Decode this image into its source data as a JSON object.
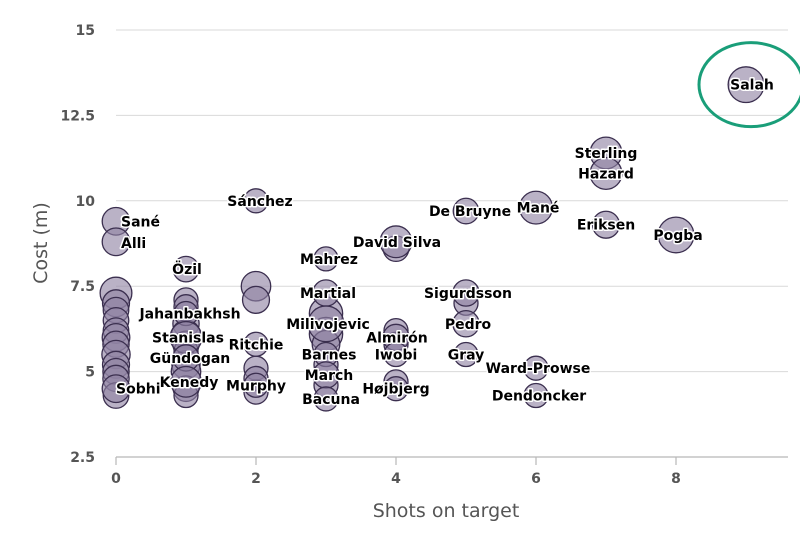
{
  "chart_data": {
    "type": "scatter",
    "xlabel": "Shots on target",
    "ylabel": "Cost (m)",
    "xlim": [
      0,
      9.5
    ],
    "ylim": [
      2.5,
      15
    ],
    "x_ticks": [
      0,
      2,
      4,
      6,
      8
    ],
    "y_ticks": [
      2.5,
      5,
      7.5,
      10,
      12.5,
      15
    ],
    "y_tick_labels": [
      "2.5",
      "5",
      "7.5",
      "10",
      "12.5",
      "15"
    ],
    "horizontal_grid": true,
    "highlight": {
      "name": "Salah",
      "color": "#1a9e79"
    },
    "colors": {
      "bubble_fill": "#8f83a3",
      "bubble_stroke": "#3b2f4f",
      "grid": "#d9d9d9"
    },
    "labeled_points": [
      {
        "name": "Salah",
        "x": 9,
        "y": 13.4,
        "size": 3
      },
      {
        "name": "Sterling",
        "x": 7,
        "y": 11.4,
        "size": 2.2
      },
      {
        "name": "Hazard",
        "x": 7,
        "y": 10.8,
        "size": 2.2
      },
      {
        "name": "Mané",
        "x": 6,
        "y": 9.8,
        "size": 2.4
      },
      {
        "name": "De Bruyne",
        "x": 5,
        "y": 9.7,
        "size": 1.2
      },
      {
        "name": "Eriksen",
        "x": 7,
        "y": 9.3,
        "size": 1.4
      },
      {
        "name": "Pogba",
        "x": 8,
        "y": 9.0,
        "size": 3
      },
      {
        "name": "Sánchez",
        "x": 2,
        "y": 10.0,
        "size": 1
      },
      {
        "name": "Sané",
        "x": 0,
        "y": 9.4,
        "size": 1.5
      },
      {
        "name": "Alli",
        "x": 0,
        "y": 8.8,
        "size": 1.5
      },
      {
        "name": "David Silva",
        "x": 4,
        "y": 8.8,
        "size": 2.2
      },
      {
        "name": "Mahrez",
        "x": 3,
        "y": 8.3,
        "size": 1
      },
      {
        "name": "Özil",
        "x": 1,
        "y": 8.0,
        "size": 1.2
      },
      {
        "name": "Martial",
        "x": 3,
        "y": 7.3,
        "size": 1.3
      },
      {
        "name": "Sigurdsson",
        "x": 5,
        "y": 7.3,
        "size": 1.3
      },
      {
        "name": "Jahanbakhsh",
        "x": 1,
        "y": 6.7,
        "size": 1
      },
      {
        "name": "Milivojevic",
        "x": 3,
        "y": 6.4,
        "size": 3
      },
      {
        "name": "Pedro",
        "x": 5,
        "y": 6.4,
        "size": 1.3
      },
      {
        "name": "Almirón",
        "x": 4,
        "y": 6.0,
        "size": 1.3
      },
      {
        "name": "Stanislas",
        "x": 1,
        "y": 6.0,
        "size": 2.2
      },
      {
        "name": "Ritchie",
        "x": 2,
        "y": 5.8,
        "size": 1
      },
      {
        "name": "Barnes",
        "x": 3,
        "y": 5.5,
        "size": 1
      },
      {
        "name": "Gündogan",
        "x": 1,
        "y": 5.4,
        "size": 1.3
      },
      {
        "name": "Iwobi",
        "x": 4,
        "y": 5.5,
        "size": 1
      },
      {
        "name": "Gray",
        "x": 5,
        "y": 5.5,
        "size": 1
      },
      {
        "name": "Ward-Prowse",
        "x": 6,
        "y": 5.1,
        "size": 1
      },
      {
        "name": "Murphy",
        "x": 2,
        "y": 4.6,
        "size": 1
      },
      {
        "name": "March",
        "x": 3,
        "y": 4.9,
        "size": 1.3
      },
      {
        "name": "Sobhi",
        "x": 0,
        "y": 4.5,
        "size": 1.5
      },
      {
        "name": "Kenedy",
        "x": 1,
        "y": 4.7,
        "size": 2
      },
      {
        "name": "Højbjerg",
        "x": 4,
        "y": 4.5,
        "size": 1
      },
      {
        "name": "Dendoncker",
        "x": 6,
        "y": 4.3,
        "size": 1
      },
      {
        "name": "Bacuna",
        "x": 3,
        "y": 4.2,
        "size": 1
      }
    ],
    "other_points": [
      {
        "x": 0,
        "y": 7.3,
        "size": 2.2
      },
      {
        "x": 0,
        "y": 7.0,
        "size": 1.4
      },
      {
        "x": 0,
        "y": 6.8,
        "size": 1.2
      },
      {
        "x": 0,
        "y": 6.5,
        "size": 1.2
      },
      {
        "x": 0,
        "y": 6.2,
        "size": 1.2
      },
      {
        "x": 0,
        "y": 6.0,
        "size": 1.5
      },
      {
        "x": 0,
        "y": 5.8,
        "size": 1.3
      },
      {
        "x": 0,
        "y": 5.5,
        "size": 1.6
      },
      {
        "x": 0,
        "y": 5.2,
        "size": 1.4
      },
      {
        "x": 0,
        "y": 5.0,
        "size": 1.3
      },
      {
        "x": 0,
        "y": 4.8,
        "size": 1.3
      },
      {
        "x": 0,
        "y": 4.3,
        "size": 1.2
      },
      {
        "x": 1,
        "y": 7.1,
        "size": 1
      },
      {
        "x": 1,
        "y": 6.9,
        "size": 1
      },
      {
        "x": 1,
        "y": 6.4,
        "size": 1.3
      },
      {
        "x": 1,
        "y": 6.1,
        "size": 1.6
      },
      {
        "x": 1,
        "y": 5.8,
        "size": 1.3
      },
      {
        "x": 1,
        "y": 5.6,
        "size": 1
      },
      {
        "x": 1,
        "y": 5.2,
        "size": 1.6
      },
      {
        "x": 1,
        "y": 5.0,
        "size": 1.8
      },
      {
        "x": 1,
        "y": 4.5,
        "size": 1.2
      },
      {
        "x": 1,
        "y": 4.3,
        "size": 1
      },
      {
        "x": 2,
        "y": 7.5,
        "size": 1.8
      },
      {
        "x": 2,
        "y": 7.1,
        "size": 1.4
      },
      {
        "x": 2,
        "y": 5.1,
        "size": 1
      },
      {
        "x": 2,
        "y": 4.8,
        "size": 1
      },
      {
        "x": 2,
        "y": 4.4,
        "size": 1
      },
      {
        "x": 3,
        "y": 6.7,
        "size": 2.5
      },
      {
        "x": 3,
        "y": 6.1,
        "size": 2.5
      },
      {
        "x": 3,
        "y": 5.8,
        "size": 1.5
      },
      {
        "x": 3,
        "y": 5.2,
        "size": 1
      },
      {
        "x": 3,
        "y": 4.6,
        "size": 1
      },
      {
        "x": 4,
        "y": 8.6,
        "size": 1.2
      },
      {
        "x": 4,
        "y": 6.2,
        "size": 1
      },
      {
        "x": 4,
        "y": 5.8,
        "size": 1
      },
      {
        "x": 4,
        "y": 4.7,
        "size": 1
      },
      {
        "x": 5,
        "y": 7.0,
        "size": 1
      }
    ]
  }
}
